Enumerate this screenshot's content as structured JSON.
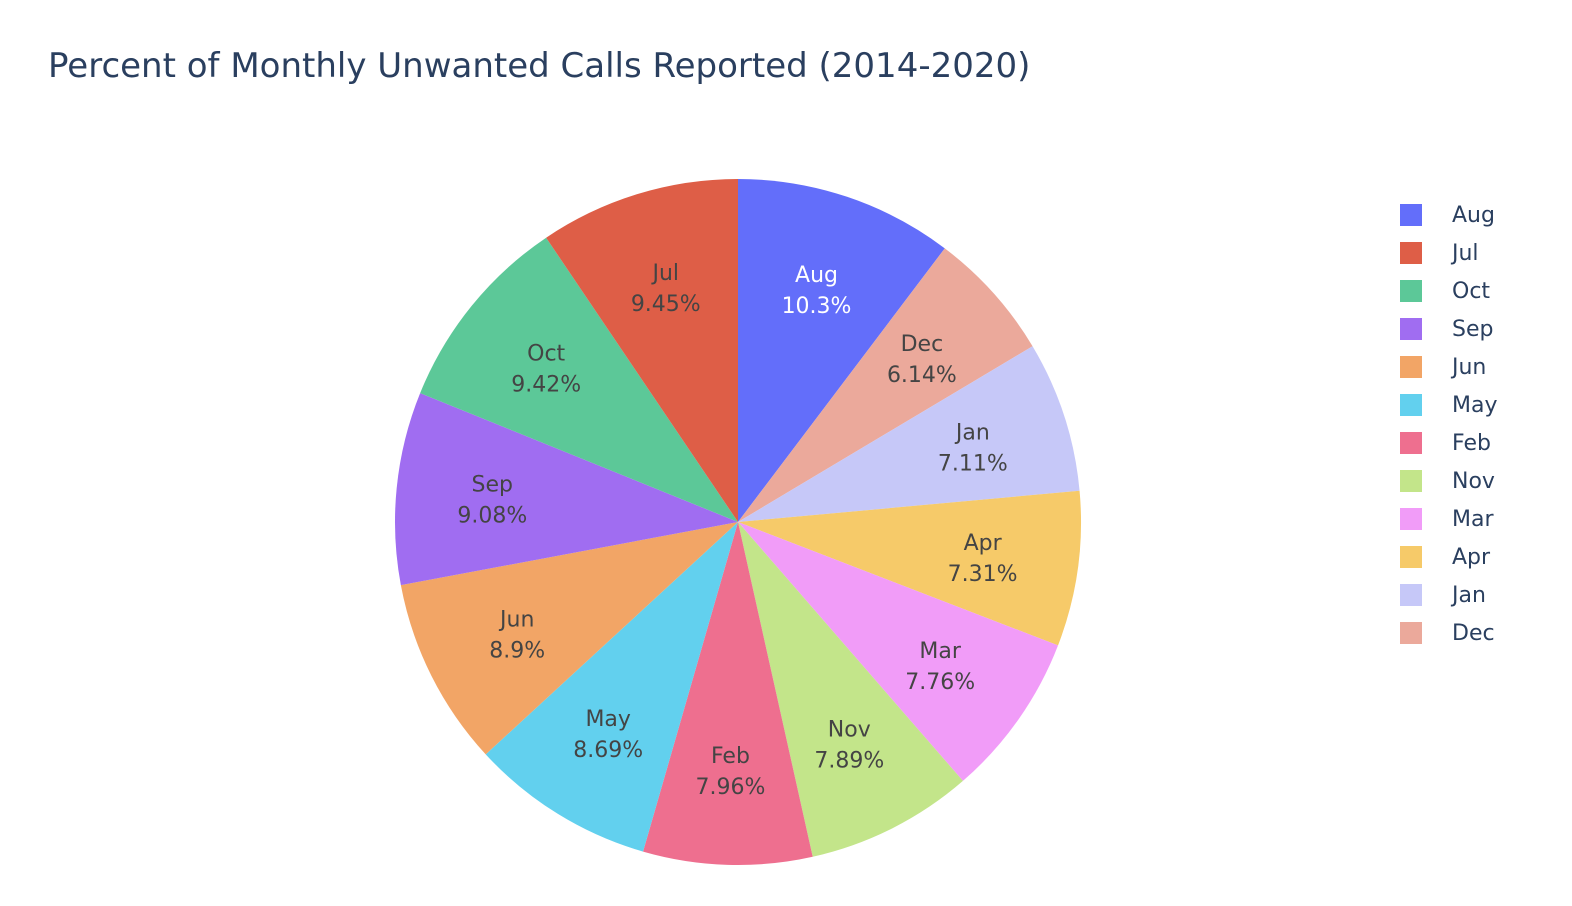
{
  "chart_data": {
    "type": "pie",
    "title": "Percent of Monthly Unwanted Calls Reported (2014-2020)",
    "slices": [
      {
        "label": "Aug",
        "value": 10.3,
        "text": "10.3%",
        "color": "#636efa",
        "text_color": "#ffffff"
      },
      {
        "label": "Dec",
        "value": 6.14,
        "text": "6.14%",
        "color": "#eba99b",
        "text_color": "#444444"
      },
      {
        "label": "Jan",
        "value": 7.11,
        "text": "7.11%",
        "color": "#c6c8f8",
        "text_color": "#444444"
      },
      {
        "label": "Apr",
        "value": 7.31,
        "text": "7.31%",
        "color": "#f6ca69",
        "text_color": "#444444"
      },
      {
        "label": "Mar",
        "value": 7.76,
        "text": "7.76%",
        "color": "#f19cf8",
        "text_color": "#444444"
      },
      {
        "label": "Nov",
        "value": 7.89,
        "text": "7.89%",
        "color": "#c3e58a",
        "text_color": "#444444"
      },
      {
        "label": "Feb",
        "value": 7.96,
        "text": "7.96%",
        "color": "#ee6f8f",
        "text_color": "#444444"
      },
      {
        "label": "May",
        "value": 8.69,
        "text": "8.69%",
        "color": "#62d0ee",
        "text_color": "#444444"
      },
      {
        "label": "Jun",
        "value": 8.9,
        "text": "8.9%",
        "color": "#f2a566",
        "text_color": "#444444"
      },
      {
        "label": "Sep",
        "value": 9.08,
        "text": "9.08%",
        "color": "#a06df1",
        "text_color": "#444444"
      },
      {
        "label": "Oct",
        "value": 9.42,
        "text": "9.42%",
        "color": "#5cc898",
        "text_color": "#444444"
      },
      {
        "label": "Jul",
        "value": 9.45,
        "text": "9.45%",
        "color": "#de5e47",
        "text_color": "#444444"
      }
    ],
    "direction": "clockwise",
    "start_angle": "top",
    "legend_position": "right",
    "legend": [
      {
        "label": "Aug",
        "color": "#636efa"
      },
      {
        "label": "Jul",
        "color": "#de5e47"
      },
      {
        "label": "Oct",
        "color": "#5cc898"
      },
      {
        "label": "Sep",
        "color": "#a06df1"
      },
      {
        "label": "Jun",
        "color": "#f2a566"
      },
      {
        "label": "May",
        "color": "#62d0ee"
      },
      {
        "label": "Feb",
        "color": "#ee6f8f"
      },
      {
        "label": "Nov",
        "color": "#c3e58a"
      },
      {
        "label": "Mar",
        "color": "#f19cf8"
      },
      {
        "label": "Apr",
        "color": "#f6ca69"
      },
      {
        "label": "Jan",
        "color": "#c6c8f8"
      },
      {
        "label": "Dec",
        "color": "#eba99b"
      }
    ]
  }
}
